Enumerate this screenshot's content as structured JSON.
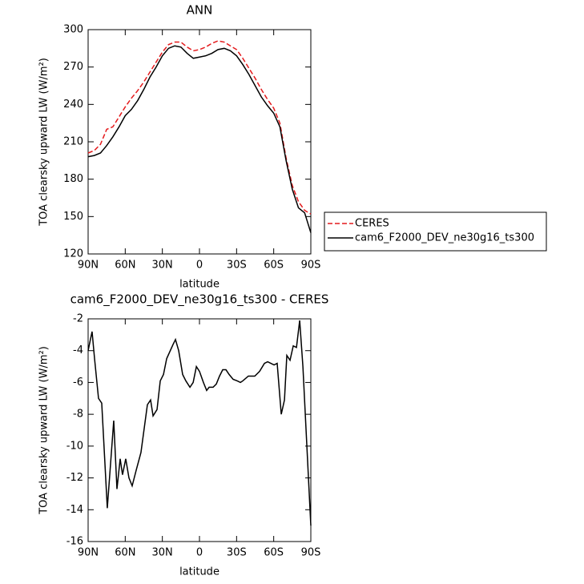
{
  "chart_data": [
    {
      "type": "line",
      "title": "ANN",
      "xlabel": "latitude",
      "ylabel": "TOA clearsky upward LW (W/m²)",
      "xlim": [
        90,
        -90
      ],
      "xticks": [
        {
          "value": 90,
          "label": "90N"
        },
        {
          "value": 60,
          "label": "60N"
        },
        {
          "value": 30,
          "label": "30N"
        },
        0,
        {
          "value": -30,
          "label": "30S"
        },
        {
          "value": -60,
          "label": "60S"
        },
        {
          "value": -90,
          "label": "90S"
        }
      ],
      "ylim": [
        120,
        300
      ],
      "yticks": [
        120,
        150,
        180,
        210,
        240,
        270,
        300
      ],
      "legend": "right",
      "x": [
        90,
        85,
        80,
        75,
        70,
        65,
        60,
        55,
        50,
        45,
        40,
        35,
        30,
        25,
        20,
        15,
        10,
        5,
        0,
        -5,
        -10,
        -15,
        -20,
        -25,
        -30,
        -35,
        -40,
        -45,
        -50,
        -55,
        -60,
        -65,
        -70,
        -75,
        -80,
        -85,
        -90
      ],
      "series": [
        {
          "name": "CERES",
          "color": "#e41a1c",
          "style": "dashed",
          "values": [
            201,
            203,
            208,
            220,
            222,
            230,
            238,
            245,
            251,
            258,
            266,
            274,
            282,
            288,
            290,
            290,
            286,
            283,
            284,
            286,
            289,
            291,
            290,
            287,
            284,
            277,
            269,
            261,
            252,
            244,
            237,
            225,
            197,
            175,
            162,
            155,
            152
          ]
        },
        {
          "name": "cam6_F2000_DEV_ne30g16_ts300",
          "color": "#000000",
          "style": "solid",
          "values": [
            198,
            199,
            201,
            207,
            214,
            222,
            231,
            236,
            243,
            252,
            262,
            270,
            279,
            285,
            287,
            286,
            281,
            277,
            278,
            279,
            281,
            284,
            285,
            283,
            279,
            272,
            264,
            255,
            246,
            239,
            233,
            222,
            195,
            172,
            157,
            153,
            137
          ]
        }
      ]
    },
    {
      "type": "line",
      "title": "cam6_F2000_DEV_ne30g16_ts300 - CERES",
      "xlabel": "latitude",
      "ylabel": "TOA clearsky upward LW (W/m²)",
      "xlim": [
        90,
        -90
      ],
      "xticks": [
        {
          "value": 90,
          "label": "90N"
        },
        {
          "value": 60,
          "label": "60N"
        },
        {
          "value": 30,
          "label": "30N"
        },
        0,
        {
          "value": -30,
          "label": "30S"
        },
        {
          "value": -60,
          "label": "60S"
        },
        {
          "value": -90,
          "label": "90S"
        }
      ],
      "ylim": [
        -16,
        -2
      ],
      "yticks": [
        -16,
        -14,
        -12,
        -10,
        -8,
        -6,
        -4,
        -2
      ],
      "x": [
        90,
        86.8,
        84.8,
        81.6,
        79,
        74.5,
        69.3,
        66.7,
        64.1,
        62.2,
        59.6,
        57,
        54.4,
        51.1,
        47.3,
        42.1,
        39.5,
        37.5,
        34.3,
        31.7,
        29.1,
        26.5,
        21.3,
        19.4,
        16.8,
        13.6,
        11,
        7.7,
        5.1,
        2.5,
        0,
        -3.2,
        -5.8,
        -7.8,
        -11,
        -13.6,
        -16.2,
        -18.8,
        -21.4,
        -24,
        -27.2,
        -30.5,
        -33.1,
        -35,
        -39.5,
        -44.7,
        -48.6,
        -52.5,
        -55.1,
        -57.7,
        -60.3,
        -62.8,
        -66.1,
        -68.7,
        -70.6,
        -73.2,
        -75.8,
        -78.4,
        -81,
        -83.6,
        -90
      ],
      "series": [
        {
          "color": "#000000",
          "style": "solid",
          "values": [
            -4,
            -2.8,
            -4.5,
            -7,
            -7.3,
            -13.9,
            -8.4,
            -12.7,
            -10.8,
            -11.8,
            -10.8,
            -12,
            -12.5,
            -11.5,
            -10.4,
            -7.4,
            -7.1,
            -8.1,
            -7.7,
            -5.9,
            -5.5,
            -4.5,
            -3.6,
            -3.3,
            -4,
            -5.5,
            -5.9,
            -6.3,
            -6,
            -5,
            -5.3,
            -6,
            -6.5,
            -6.3,
            -6.3,
            -6.1,
            -5.6,
            -5.2,
            -5.2,
            -5.5,
            -5.8,
            -5.9,
            -6,
            -5.9,
            -5.6,
            -5.6,
            -5.3,
            -4.8,
            -4.7,
            -4.8,
            -4.9,
            -4.8,
            -8,
            -7.1,
            -4.3,
            -4.6,
            -3.7,
            -3.8,
            -2.1,
            -5,
            -15
          ]
        }
      ]
    }
  ]
}
